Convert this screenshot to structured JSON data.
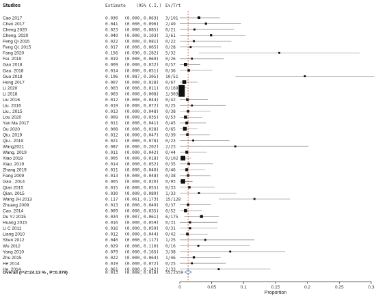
{
  "headers": {
    "studies": "Studies",
    "estimate": "Estimate",
    "ci": "(95% C.I.)",
    "ev_trt": "Ev/Trt"
  },
  "chart_data": {
    "type": "forest",
    "xlabel": "Proportion",
    "xlim": [
      0,
      0.3
    ],
    "xticks": [
      0,
      0.05,
      0.1,
      0.15,
      0.2,
      0.25,
      0.3
    ],
    "xtick_labels": [
      "0",
      "0.05",
      "0.1",
      "0.15",
      "0.2",
      "0.25",
      "0.3"
    ],
    "reference_line": 0.013,
    "studies": [
      {
        "name": "Cao 2017",
        "est": 0.03,
        "lo": 0.0,
        "hi": 0.063,
        "est_text": "0.030",
        "lo_text": "0.000",
        "hi_text": "0.063",
        "evtrt": "3/101",
        "weight": 2.0
      },
      {
        "name": "Chen 2017",
        "est": 0.041,
        "lo": 0.0,
        "hi": 0.096,
        "est_text": "0.041",
        "lo_text": "0.000",
        "hi_text": "0.096",
        "evtrt": "2/49",
        "weight": 1.6
      },
      {
        "name": "Cheng 2020",
        "est": 0.023,
        "lo": 0.0,
        "hi": 0.085,
        "est_text": "0.023",
        "lo_text": "0.000",
        "hi_text": "0.085",
        "evtrt": "0/21",
        "weight": 1.3
      },
      {
        "name": "Cheng. 2020",
        "est": 0.049,
        "lo": 0.0,
        "hi": 0.103,
        "est_text": "0.049",
        "lo_text": "0.000",
        "hi_text": "0.103",
        "evtrt": "3/61",
        "weight": 1.6
      },
      {
        "name": "Feng Qi 2015",
        "est": 0.022,
        "lo": 0.0,
        "hi": 0.081,
        "est_text": "0.022",
        "lo_text": "0.000",
        "hi_text": "0.081",
        "evtrt": "0/22",
        "weight": 1.3
      },
      {
        "name": "Feng Qi. 2015",
        "est": 0.017,
        "lo": 0.0,
        "hi": 0.065,
        "est_text": "0.017",
        "lo_text": "0.000",
        "hi_text": "0.065",
        "evtrt": "0/28",
        "weight": 1.4
      },
      {
        "name": "Fang 2020",
        "est": 0.156,
        "lo": 0.03,
        "hi": 0.282,
        "est_text": "0.156",
        "lo_text": "0.030",
        "hi_text": "0.282",
        "evtrt": "5/32",
        "weight": 0.9
      },
      {
        "name": "Fei. 2019",
        "est": 0.019,
        "lo": 0.0,
        "hi": 0.069,
        "est_text": "0.019",
        "lo_text": "0.000",
        "hi_text": "0.069",
        "evtrt": "0/26",
        "weight": 1.4
      },
      {
        "name": "Gao 2018",
        "est": 0.009,
        "lo": 0.0,
        "hi": 0.032,
        "est_text": "0.009",
        "lo_text": "0.000",
        "hi_text": "0.032",
        "evtrt": "0/57",
        "weight": 2.4
      },
      {
        "name": "Gao. 2018",
        "est": 0.014,
        "lo": 0.0,
        "hi": 0.051,
        "est_text": "0.014",
        "lo_text": "0.000",
        "hi_text": "0.051",
        "evtrt": "0/36",
        "weight": 1.8
      },
      {
        "name": "Guo 2018",
        "est": 0.196,
        "lo": 0.087,
        "hi": 0.305,
        "est_text": "0.196",
        "lo_text": "0.087",
        "hi_text": "0.305",
        "evtrt": "10/51",
        "weight": 0.9
      },
      {
        "name": "Hong 2017",
        "est": 0.007,
        "lo": 0.0,
        "hi": 0.028,
        "est_text": "0.007",
        "lo_text": "0.000",
        "hi_text": "0.028",
        "evtrt": "0/67",
        "weight": 2.8
      },
      {
        "name": "Li 2020",
        "est": 0.003,
        "lo": 0.0,
        "hi": 0.011,
        "est_text": "0.003",
        "lo_text": "0.000",
        "hi_text": "0.011",
        "evtrt": "0/169",
        "weight": 4.5
      },
      {
        "name": "Li 2018",
        "est": 0.003,
        "lo": 0.0,
        "hi": 0.008,
        "est_text": "0.003",
        "lo_text": "0.000",
        "hi_text": "0.008",
        "evtrt": "1/303",
        "weight": 4.5
      },
      {
        "name": "Liu 2016",
        "est": 0.012,
        "lo": 0.0,
        "hi": 0.044,
        "est_text": "0.012",
        "lo_text": "0.000",
        "hi_text": "0.044",
        "evtrt": "0/42",
        "weight": 2.0
      },
      {
        "name": "Liu. 2016",
        "est": 0.019,
        "lo": 0.0,
        "hi": 0.072,
        "est_text": "0.019",
        "lo_text": "0.000",
        "hi_text": "0.072",
        "evtrt": "0/25",
        "weight": 1.4
      },
      {
        "name": "Liu.. 2015",
        "est": 0.013,
        "lo": 0.0,
        "hi": 0.048,
        "est_text": "0.013",
        "lo_text": "0.000",
        "hi_text": "0.048",
        "evtrt": "0/38",
        "weight": 1.8
      },
      {
        "name": "Lou 2020",
        "est": 0.009,
        "lo": 0.0,
        "hi": 0.035,
        "est_text": "0.009",
        "lo_text": "0.000",
        "hi_text": "0.035",
        "evtrt": "0/53",
        "weight": 2.3
      },
      {
        "name": "Yan Ma 2017",
        "est": 0.011,
        "lo": 0.0,
        "hi": 0.041,
        "est_text": "0.011",
        "lo_text": "0.000",
        "hi_text": "0.041",
        "evtrt": "0/45",
        "weight": 2.1
      },
      {
        "name": "Ou 2020",
        "est": 0.008,
        "lo": 0.0,
        "hi": 0.028,
        "est_text": "0.008",
        "lo_text": "0.000",
        "hi_text": "0.028",
        "evtrt": "0/65",
        "weight": 2.7
      },
      {
        "name": "Qiu. 2019",
        "est": 0.012,
        "lo": 0.0,
        "hi": 0.047,
        "est_text": "0.012",
        "lo_text": "0.000",
        "hi_text": "0.047",
        "evtrt": "0/39",
        "weight": 1.9
      },
      {
        "name": "Qiu.. 2019",
        "est": 0.021,
        "lo": 0.0,
        "hi": 0.078,
        "est_text": "0.021",
        "lo_text": "0.000",
        "hi_text": "0.078",
        "evtrt": "0/23",
        "weight": 1.3
      },
      {
        "name": "Wang2021",
        "est": 0.087,
        "lo": 0.0,
        "hi": 0.202,
        "est_text": "0.087",
        "lo_text": "0.000",
        "hi_text": "0.202",
        "evtrt": "2/23",
        "weight": 0.9
      },
      {
        "name": "Wang. 2019",
        "est": 0.011,
        "lo": 0.0,
        "hi": 0.042,
        "est_text": "0.011",
        "lo_text": "0.000",
        "hi_text": "0.042",
        "evtrt": "0/44",
        "weight": 2.1
      },
      {
        "name": "Xiao 2018",
        "est": 0.005,
        "lo": 0.0,
        "hi": 0.018,
        "est_text": "0.005",
        "lo_text": "0.000",
        "hi_text": "0.018",
        "evtrt": "0/102",
        "weight": 3.4
      },
      {
        "name": "Xiao. 2019",
        "est": 0.014,
        "lo": 0.0,
        "hi": 0.052,
        "est_text": "0.014",
        "lo_text": "0.000",
        "hi_text": "0.052",
        "evtrt": "0/35",
        "weight": 1.8
      },
      {
        "name": "Zhang 2019",
        "est": 0.011,
        "lo": 0.0,
        "hi": 0.04,
        "est_text": "0.011",
        "lo_text": "0.000",
        "hi_text": "0.040",
        "evtrt": "0/46",
        "weight": 2.1
      },
      {
        "name": "Fang 2009",
        "est": 0.013,
        "lo": 0.0,
        "hi": 0.048,
        "est_text": "0.013",
        "lo_text": "0.000",
        "hi_text": "0.048",
        "evtrt": "0/38",
        "weight": 1.8
      },
      {
        "name": "Gao.. 2014",
        "est": 0.005,
        "lo": 0.0,
        "hi": 0.02,
        "est_text": "0.005",
        "lo_text": "0.000",
        "hi_text": "0.020",
        "evtrt": "0/93",
        "weight": 3.2
      },
      {
        "name": "Qian 2015",
        "est": 0.015,
        "lo": 0.0,
        "hi": 0.055,
        "est_text": "0.015",
        "lo_text": "0.000",
        "hi_text": "0.055",
        "evtrt": "0/33",
        "weight": 1.7
      },
      {
        "name": "Qian. 2015",
        "est": 0.03,
        "lo": 0.0,
        "hi": 0.089,
        "est_text": "0.030",
        "lo_text": "0.000",
        "hi_text": "0.089",
        "evtrt": "1/33",
        "weight": 1.3
      },
      {
        "name": "Wang JH 2013",
        "est": 0.117,
        "lo": 0.061,
        "hi": 0.173,
        "est_text": "0.117",
        "lo_text": "0.061",
        "hi_text": "0.173",
        "evtrt": "15/128",
        "weight": 1.3
      },
      {
        "name": "Zhuang 2009",
        "est": 0.013,
        "lo": 0.0,
        "hi": 0.049,
        "est_text": "0.013",
        "lo_text": "0.000",
        "hi_text": "0.049",
        "evtrt": "0/37",
        "weight": 1.8
      },
      {
        "name": "Cao. 2014",
        "est": 0.009,
        "lo": 0.0,
        "hi": 0.035,
        "est_text": "0.009",
        "lo_text": "0.000",
        "hi_text": "0.035",
        "evtrt": "0/52",
        "weight": 2.3
      },
      {
        "name": "Du YJ 2015",
        "est": 0.034,
        "lo": 0.007,
        "hi": 0.061,
        "est_text": "0.034",
        "lo_text": "0.007",
        "hi_text": "0.061",
        "evtrt": "6/175",
        "weight": 2.1
      },
      {
        "name": "Huang 2015",
        "est": 0.016,
        "lo": 0.0,
        "hi": 0.059,
        "est_text": "0.016",
        "lo_text": "0.000",
        "hi_text": "0.059",
        "evtrt": "0/31",
        "weight": 1.6
      },
      {
        "name": "Li C 2011",
        "est": 0.016,
        "lo": 0.0,
        "hi": 0.059,
        "est_text": "0.016",
        "lo_text": "0.000",
        "hi_text": "0.059",
        "evtrt": "0/31",
        "weight": 1.6
      },
      {
        "name": "Liang 2010",
        "est": 0.012,
        "lo": 0.0,
        "hi": 0.044,
        "est_text": "0.012",
        "lo_text": "0.000",
        "hi_text": "0.044",
        "evtrt": "0/42",
        "weight": 2.0
      },
      {
        "name": "Shen 2012",
        "est": 0.04,
        "lo": 0.0,
        "hi": 0.117,
        "est_text": "0.040",
        "lo_text": "0.000",
        "hi_text": "0.117",
        "evtrt": "1/25",
        "weight": 1.1
      },
      {
        "name": "Wu 2012",
        "est": 0.029,
        "lo": 0.0,
        "hi": 0.11,
        "est_text": "0.029",
        "lo_text": "0.000",
        "hi_text": "0.110",
        "evtrt": "0/16",
        "weight": 1.1
      },
      {
        "name": "Yang 2010",
        "est": 0.079,
        "lo": 0.0,
        "hi": 0.165,
        "est_text": "0.079",
        "lo_text": "0.000",
        "hi_text": "0.165",
        "evtrt": "3/38",
        "weight": 1.0
      },
      {
        "name": "Zhu 2015",
        "est": 0.022,
        "lo": 0.0,
        "hi": 0.064,
        "est_text": "0.022",
        "lo_text": "0.000",
        "hi_text": "0.064",
        "evtrt": "1/46",
        "weight": 1.6
      },
      {
        "name": "He 2014",
        "est": 0.019,
        "lo": 0.0,
        "hi": 0.072,
        "est_text": "0.019",
        "lo_text": "0.000",
        "hi_text": "0.072",
        "evtrt": "0/25",
        "weight": 1.4
      },
      {
        "name": "He. 2014",
        "est": 0.061,
        "lo": 0.0,
        "hi": 0.142,
        "est_text": "0.061",
        "lo_text": "0.000",
        "hi_text": "0.142",
        "evtrt": "2/33",
        "weight": 1.0
      }
    ],
    "overall": {
      "name": "Overall (I^2=24.13 % , P=0.079)",
      "est": 0.013,
      "lo": 0.008,
      "hi": 0.018,
      "est_text": "0.013",
      "lo_text": "0.008",
      "hi_text": "0.018",
      "evtrt": "55/2559"
    },
    "colors": {
      "reference_line": "#e03030",
      "diamond": "#5b8fc9",
      "ci_line": "#888888",
      "box": "#111111"
    }
  }
}
